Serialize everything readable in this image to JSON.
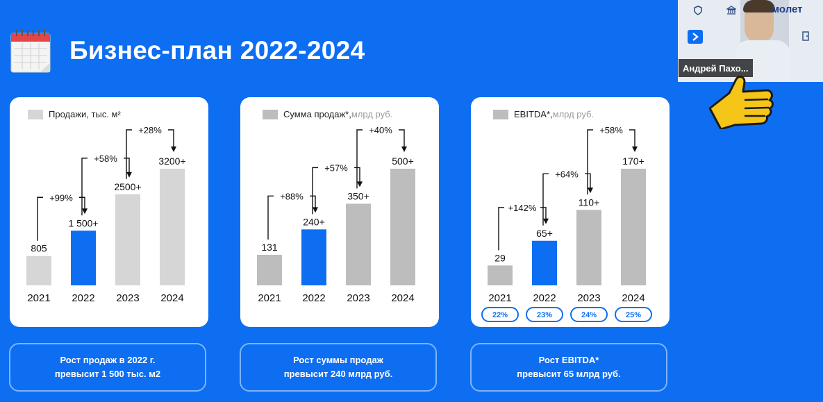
{
  "slide": {
    "title": "Бизнес-план 2022-2024"
  },
  "video": {
    "participant_name": "Андрей Пахо...",
    "brand_partial": "молет"
  },
  "colors": {
    "accent": "#0d6ef2",
    "bar_grey": "#d6d6d6",
    "bar_dark_grey": "#bdbdbd",
    "bar_blue": "#0d6ef2"
  },
  "charts": [
    {
      "legend": "Продажи, тыс. м²",
      "legend_muted": "",
      "summary": "Рост продаж в 2022 г.\nпревысит 1 500 тыс. м2"
    },
    {
      "legend": "Сумма продаж*,",
      "legend_muted": " млрд руб.",
      "summary": "Рост суммы продаж\nпревысит 240 млрд руб."
    },
    {
      "legend": "EBITDA*,",
      "legend_muted": " млрд руб.",
      "summary": "Рост EBITDA*\nпревысит 65 млрд руб."
    }
  ],
  "chart_data": [
    {
      "type": "bar",
      "categories": [
        "2021",
        "2022",
        "2023",
        "2024"
      ],
      "values": [
        805,
        1500,
        2500,
        3200
      ],
      "labels": [
        "805",
        "1 500+",
        "2500+",
        "3200+"
      ],
      "growth": [
        "+99%",
        "+58%",
        "+28%"
      ],
      "ylim": [
        0,
        3200
      ],
      "highlight": "2022",
      "legend": "Продажи, тыс. м²"
    },
    {
      "type": "bar",
      "categories": [
        "2021",
        "2022",
        "2023",
        "2024"
      ],
      "values": [
        131,
        240,
        350,
        500
      ],
      "labels": [
        "131",
        "240+",
        "350+",
        "500+"
      ],
      "growth": [
        "+88%",
        "+57%",
        "+40%"
      ],
      "ylim": [
        0,
        500
      ],
      "highlight": "2022",
      "legend": "Сумма продаж*, млрд руб."
    },
    {
      "type": "bar",
      "categories": [
        "2021",
        "2022",
        "2023",
        "2024"
      ],
      "values": [
        29,
        65,
        110,
        170
      ],
      "labels": [
        "29",
        "65+",
        "110+",
        "170+"
      ],
      "growth": [
        "+142%",
        "+64%",
        "+58%"
      ],
      "margins": [
        "22%",
        "23%",
        "24%",
        "25%"
      ],
      "ylim": [
        0,
        170
      ],
      "highlight": "2022",
      "legend": "EBITDA*, млрд руб."
    }
  ]
}
